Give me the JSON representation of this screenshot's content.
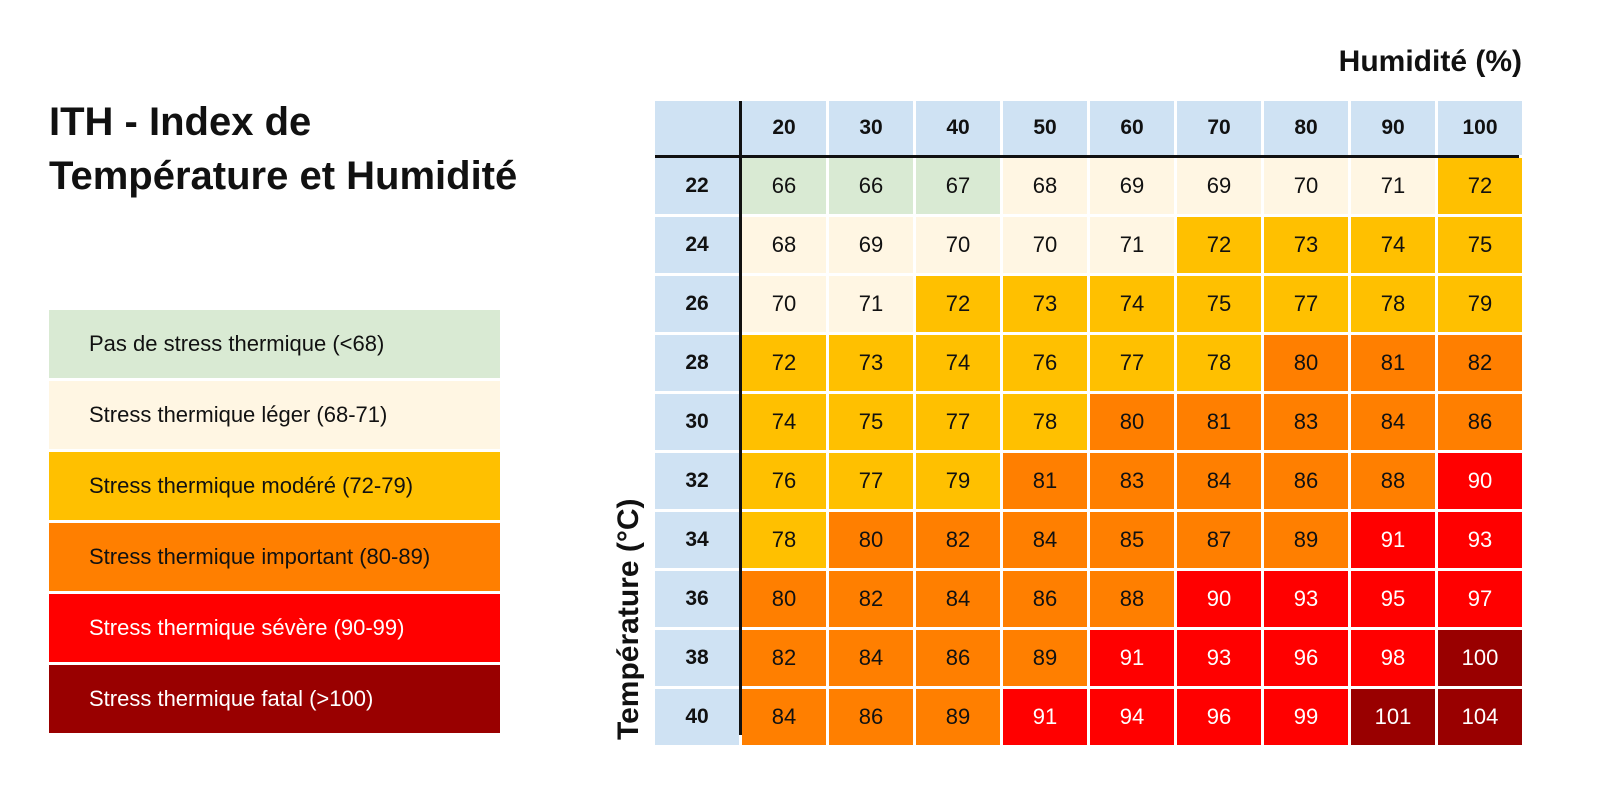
{
  "title": "ITH - Index de Température et Humidité",
  "legend": [
    {
      "label": "Pas de stress thermique (<68)",
      "color": "#d9ead3",
      "text_color": "#111111"
    },
    {
      "label": "Stress thermique léger (68-71)",
      "color": "#fff6e3",
      "text_color": "#111111"
    },
    {
      "label": "Stress thermique modéré (72-79)",
      "color": "#ffc000",
      "text_color": "#111111"
    },
    {
      "label": "Stress thermique important (80-89)",
      "color": "#ff7f00",
      "text_color": "#111111"
    },
    {
      "label": "Stress thermique sévère (90-99)",
      "color": "#ff0000",
      "text_color": "#ffffff"
    },
    {
      "label": "Stress thermique fatal (>100)",
      "color": "#990000",
      "text_color": "#ffffff"
    }
  ],
  "chart_data": {
    "type": "heatmap",
    "xlabel": "Humidité (%)",
    "ylabel": "Température (°C)",
    "x": [
      20,
      30,
      40,
      50,
      60,
      70,
      80,
      90,
      100
    ],
    "y": [
      22,
      24,
      26,
      28,
      30,
      32,
      34,
      36,
      38,
      40
    ],
    "values": [
      [
        66,
        66,
        67,
        68,
        69,
        69,
        70,
        71,
        72
      ],
      [
        68,
        69,
        70,
        70,
        71,
        72,
        73,
        74,
        75
      ],
      [
        70,
        71,
        72,
        73,
        74,
        75,
        77,
        78,
        79
      ],
      [
        72,
        73,
        74,
        76,
        77,
        78,
        80,
        81,
        82
      ],
      [
        74,
        75,
        77,
        78,
        80,
        81,
        83,
        84,
        86
      ],
      [
        76,
        77,
        79,
        81,
        83,
        84,
        86,
        88,
        90
      ],
      [
        78,
        80,
        82,
        84,
        85,
        87,
        89,
        91,
        93
      ],
      [
        80,
        82,
        84,
        86,
        88,
        90,
        93,
        95,
        97
      ],
      [
        82,
        84,
        86,
        89,
        91,
        93,
        96,
        98,
        100
      ],
      [
        84,
        86,
        89,
        91,
        94,
        96,
        99,
        101,
        104
      ]
    ]
  },
  "colors": {
    "header": "#cfe2f3",
    "none": "#d9ead3",
    "light": "#fff6e3",
    "moderate": "#ffc000",
    "important": "#ff7f00",
    "severe": "#ff0000",
    "fatal": "#990000"
  }
}
